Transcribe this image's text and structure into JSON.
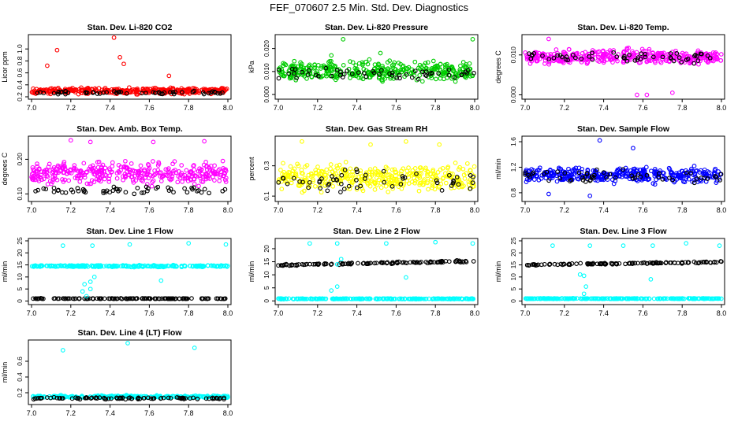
{
  "page_title": "FEF_070607  2.5 Min. Std. Dev. Diagnostics",
  "colors": {
    "red": "#ff0000",
    "green": "#00cc00",
    "magenta": "#ff00ff",
    "yellow": "#ffff00",
    "blue": "#0000ff",
    "cyan": "#00ffff",
    "black": "#000000"
  },
  "chart_data": [
    {
      "id": "p1",
      "type": "scatter",
      "title": "Stan. Dev. Li-820 CO2",
      "ylabel": "Licor ppm",
      "x_ticks": [
        "7.0",
        "7.2",
        "7.4",
        "7.6",
        "7.8",
        "8.0"
      ],
      "y_ticks": [
        "0.2",
        "0.4",
        "0.6",
        "0.8",
        "1.0"
      ],
      "xlim": [
        7.0,
        8.0
      ],
      "ylim": [
        0.2,
        1.2
      ],
      "series_color": "#ff0000",
      "base": 0.3,
      "spread": 0.04,
      "min": 0.22,
      "outliers": [
        [
          7.08,
          0.72
        ],
        [
          7.13,
          0.98
        ],
        [
          7.42,
          1.19
        ],
        [
          7.45,
          0.86
        ],
        [
          7.47,
          0.75
        ],
        [
          7.7,
          0.55
        ]
      ],
      "black_level": 0.27,
      "black_spread": 0.02
    },
    {
      "id": "p2",
      "type": "scatter",
      "title": "Stan. Dev. Li-820 Pressure",
      "ylabel": "kPa",
      "x_ticks": [
        "7.0",
        "7.2",
        "7.4",
        "7.6",
        "7.8",
        "8.0"
      ],
      "y_ticks": [
        "0.000",
        "0.010",
        "0.020"
      ],
      "xlim": [
        7.0,
        8.0
      ],
      "ylim": [
        -0.001,
        0.025
      ],
      "series_color": "#00cc00",
      "base": 0.01,
      "spread": 0.0035,
      "min": 0.0,
      "outliers": [
        [
          7.33,
          0.024
        ],
        [
          7.99,
          0.024
        ],
        [
          7.27,
          0.017
        ],
        [
          7.52,
          0.018
        ]
      ],
      "black_level": 0.009,
      "black_spread": 0.002
    },
    {
      "id": "p3",
      "type": "scatter",
      "title": "Stan. Dev. Li-820 Temp.",
      "ylabel": "degrees C",
      "x_ticks": [
        "7.0",
        "7.2",
        "7.4",
        "7.6",
        "7.8",
        "8.0"
      ],
      "y_ticks": [
        "0.000",
        "0.010"
      ],
      "xlim": [
        7.0,
        8.0
      ],
      "ylim": [
        -0.0005,
        0.0145
      ],
      "series_color": "#ff00ff",
      "base": 0.0095,
      "spread": 0.0015,
      "min": 0.002,
      "outliers": [
        [
          7.12,
          0.014
        ],
        [
          7.57,
          0.0
        ],
        [
          7.62,
          0.0
        ],
        [
          7.75,
          0.0005
        ]
      ],
      "black_level": 0.0095,
      "black_spread": 0.0012
    },
    {
      "id": "p4",
      "type": "scatter",
      "title": "Stan. Dev. Amb. Box Temp.",
      "ylabel": "degrees C",
      "x_ticks": [
        "7.0",
        "7.2",
        "7.4",
        "7.6",
        "7.8",
        "8.0"
      ],
      "y_ticks": [
        "0.10",
        "0.20"
      ],
      "xlim": [
        7.0,
        8.0
      ],
      "ylim": [
        0.085,
        0.26
      ],
      "series_color": "#ff00ff",
      "base": 0.16,
      "spread": 0.025,
      "min": 0.1,
      "outliers": [
        [
          7.2,
          0.255
        ],
        [
          7.3,
          0.25
        ],
        [
          7.62,
          0.25
        ],
        [
          7.88,
          0.252
        ]
      ],
      "black_level": 0.112,
      "black_spread": 0.01
    },
    {
      "id": "p5",
      "type": "scatter",
      "title": "Stan. Dev. Gas Stream RH",
      "ylabel": "percent",
      "x_ticks": [
        "7.0",
        "7.2",
        "7.4",
        "7.6",
        "7.8",
        "8.0"
      ],
      "y_ticks": [
        "0.1",
        "0.3"
      ],
      "xlim": [
        7.0,
        8.0
      ],
      "ylim": [
        0.08,
        0.48
      ],
      "series_color": "#ffff00",
      "base": 0.22,
      "spread": 0.07,
      "min": 0.1,
      "outliers": [
        [
          7.12,
          0.46
        ],
        [
          7.47,
          0.44
        ],
        [
          7.65,
          0.46
        ],
        [
          7.82,
          0.44
        ]
      ],
      "black_level": 0.2,
      "black_spread": 0.06
    },
    {
      "id": "p6",
      "type": "scatter",
      "title": "Stan. Dev. Sample Flow",
      "ylabel": "ml/min",
      "x_ticks": [
        "7.0",
        "7.2",
        "7.4",
        "7.6",
        "7.8",
        "8.0"
      ],
      "y_ticks": [
        "0.8",
        "1.2",
        "1.6"
      ],
      "xlim": [
        7.0,
        8.0
      ],
      "ylim": [
        0.7,
        1.65
      ],
      "series_color": "#0000ff",
      "base": 1.08,
      "spread": 0.1,
      "min": 0.75,
      "outliers": [
        [
          7.38,
          1.62
        ],
        [
          7.33,
          0.75
        ],
        [
          7.55,
          1.5
        ],
        [
          7.12,
          0.78
        ]
      ],
      "black_level": 1.05,
      "black_spread": 0.08
    },
    {
      "id": "p7",
      "type": "scatter",
      "title": "Stan. Dev. Line 1 Flow",
      "ylabel": "ml/min",
      "x_ticks": [
        "7.0",
        "7.2",
        "7.4",
        "7.6",
        "7.8",
        "8.0"
      ],
      "y_ticks": [
        "0",
        "5",
        "10",
        "15",
        "20",
        "25"
      ],
      "xlim": [
        7.0,
        8.0
      ],
      "ylim": [
        -0.5,
        25
      ],
      "series_color": "#00ffff",
      "mode": "flow1"
    },
    {
      "id": "p8",
      "type": "scatter",
      "title": "Stan. Dev. Line 2 Flow",
      "ylabel": "ml/min",
      "x_ticks": [
        "7.0",
        "7.2",
        "7.4",
        "7.6",
        "7.8",
        "8.0"
      ],
      "y_ticks": [
        "0",
        "5",
        "10",
        "15",
        "20"
      ],
      "xlim": [
        7.0,
        8.0
      ],
      "ylim": [
        -0.5,
        23
      ],
      "series_color": "#00ffff",
      "mode": "flow2"
    },
    {
      "id": "p9",
      "type": "scatter",
      "title": "Stan. Dev. Line 3 Flow",
      "ylabel": "ml/min",
      "x_ticks": [
        "7.0",
        "7.2",
        "7.4",
        "7.6",
        "7.8",
        "8.0"
      ],
      "y_ticks": [
        "0",
        "5",
        "10",
        "15",
        "20",
        "25"
      ],
      "xlim": [
        7.0,
        8.0
      ],
      "ylim": [
        -0.5,
        25
      ],
      "series_color": "#00ffff",
      "mode": "flow3"
    },
    {
      "id": "p10",
      "type": "scatter",
      "title": "Stan. Dev. Line 4 (LT) Flow",
      "ylabel": "ml/min",
      "x_ticks": [
        "7.0",
        "7.2",
        "7.4",
        "7.6",
        "7.8",
        "8.0"
      ],
      "y_ticks": [
        "0.2",
        "0.4",
        "0.6"
      ],
      "xlim": [
        7.0,
        8.0
      ],
      "ylim": [
        0.08,
        0.84
      ],
      "series_color": "#00ffff",
      "mode": "flow4"
    }
  ]
}
